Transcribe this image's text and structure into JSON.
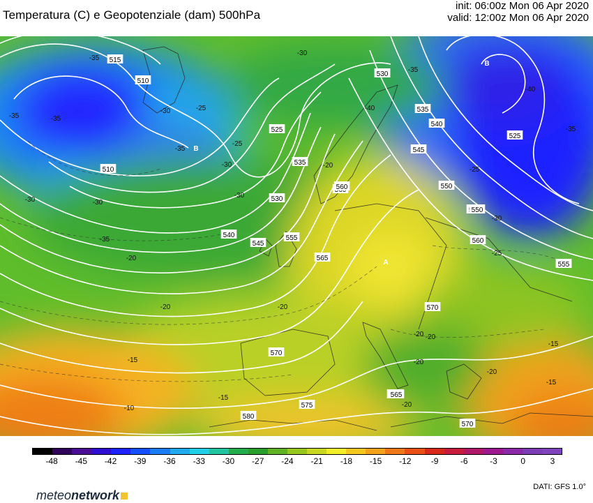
{
  "title": "Temperatura (C) e Geopotenziale (dam) 500hPa",
  "run": {
    "init": "init: 06:00z Mon 06 Apr 2020",
    "valid": "valid: 12:00z Mon 06 Apr 2020"
  },
  "colorbar": {
    "tick_labels": [
      "-48",
      "-45",
      "-42",
      "-39",
      "-36",
      "-33",
      "-30",
      "-27",
      "-24",
      "-21",
      "-18",
      "-15",
      "-12",
      "-9",
      "-6",
      "-3",
      "0",
      "3"
    ],
    "colors": [
      "#000000",
      "#30045a",
      "#4a0e96",
      "#2e0ed0",
      "#1d23ff",
      "#1450ff",
      "#1b7df5",
      "#22aaf0",
      "#20d0e6",
      "#22c4a0",
      "#23ad4d",
      "#2a9e2a",
      "#60b324",
      "#96c81e",
      "#c8d820",
      "#f2ee28",
      "#f6c81e",
      "#f5a21b",
      "#f07818",
      "#e85014",
      "#d8281a",
      "#c81c3c",
      "#b0186a",
      "#a01890",
      "#8a2aa8",
      "#7c3cb4",
      "#7f43be"
    ]
  },
  "map_labels": {
    "contours": [
      "515",
      "510",
      "510",
      "525",
      "530",
      "530",
      "535",
      "540",
      "545",
      "550",
      "555",
      "560",
      "565",
      "570",
      "575",
      "580",
      "535",
      "540",
      "545",
      "550",
      "555",
      "560",
      "565",
      "570",
      "570",
      "565",
      "525",
      "530",
      "555",
      "560",
      "550"
    ],
    "temperatures": [
      "-35",
      "-30",
      "-30",
      "-35",
      "-35",
      "-30",
      "-25",
      "-30",
      "-30",
      "-35",
      "-35",
      "-40",
      "-40",
      "-35",
      "-30",
      "-25",
      "-20",
      "-20",
      "-20",
      "-20",
      "-20",
      "-15",
      "-15",
      "-15",
      "-10",
      "-20",
      "-20",
      "-25",
      "-20",
      "-25",
      "-30",
      "-35",
      "-20",
      "-15"
    ],
    "highs_lows": [
      "B",
      "B",
      "A"
    ]
  },
  "footer": {
    "brand_light": "meteo",
    "brand_bold": "network",
    "data_source": "DATI:  GFS  1.0°"
  }
}
